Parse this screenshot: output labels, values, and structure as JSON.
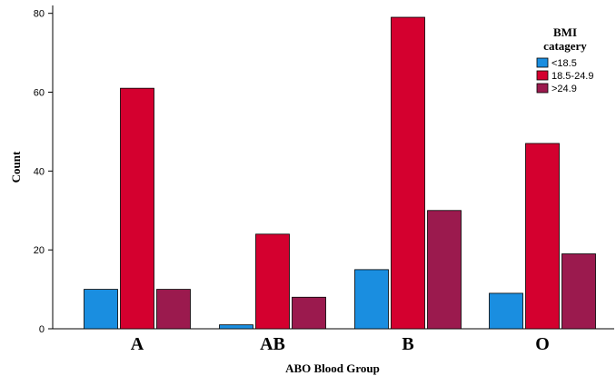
{
  "chart_data": {
    "type": "bar",
    "categories": [
      "A",
      "AB",
      "B",
      "O"
    ],
    "series": [
      {
        "name": "<18.5",
        "values": [
          10,
          1,
          15,
          9
        ],
        "color": "#1a8ee0"
      },
      {
        "name": "18.5-24.9",
        "values": [
          61,
          24,
          79,
          47
        ],
        "color": "#d4002f"
      },
      {
        "name": ">24.9",
        "values": [
          10,
          8,
          30,
          19
        ],
        "color": "#9b1a4e"
      }
    ],
    "xlabel": "ABO Blood Group",
    "ylabel": "Count",
    "ylim": [
      0,
      82
    ],
    "yticks": [
      0,
      20,
      40,
      60,
      80
    ],
    "legend": {
      "title_line1": "BMI",
      "title_line2": "catagery",
      "position": "top-right"
    },
    "grid": false
  }
}
